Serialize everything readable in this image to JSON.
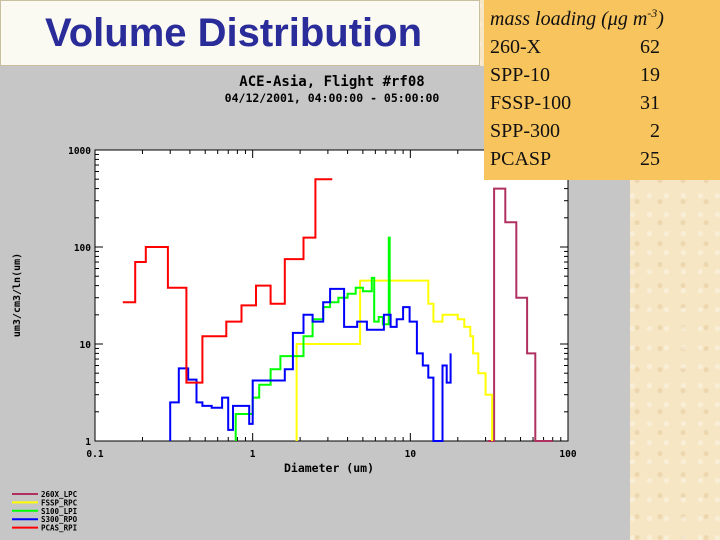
{
  "slide": {
    "title": "Volume Distribution"
  },
  "mass_loading": {
    "title_prefix": "mass loading (",
    "unit_mu": "μ",
    "unit_rest": "g m",
    "exponent": "-3",
    "title_suffix": ")",
    "rows": [
      {
        "name": "260-X",
        "value": "62"
      },
      {
        "name": "SPP-10",
        "value": "19"
      },
      {
        "name": "FSSP-100",
        "value": "31"
      },
      {
        "name": "SPP-300",
        "value": "2"
      },
      {
        "name": "PCASP",
        "value": "25"
      }
    ]
  },
  "chart_data": {
    "type": "line",
    "title": "ACE-Asia, Flight #rf08",
    "subtitle": "04/12/2001, 04:00:00 - 05:00:00",
    "xlabel": "Diameter (um)",
    "ylabel": "um3/cm3/ln(um)",
    "x_scale": "log",
    "y_scale": "log",
    "xlim": [
      0.1,
      100
    ],
    "ylim": [
      1,
      1000
    ],
    "x_ticks": [
      {
        "v": 0.1,
        "label": "0.1"
      },
      {
        "v": 1,
        "label": "1"
      },
      {
        "v": 10,
        "label": "10"
      },
      {
        "v": 100,
        "label": "100"
      }
    ],
    "y_ticks": [
      {
        "v": 1,
        "label": "1"
      },
      {
        "v": 10,
        "label": "10"
      },
      {
        "v": 100,
        "label": "100"
      },
      {
        "v": 1000,
        "label": "1000"
      }
    ],
    "grid": false,
    "legend_position": "bottom-left",
    "series": [
      {
        "name": "260X_LPC",
        "color": "#b03060",
        "points": [
          [
            31,
            1
          ],
          [
            34,
            1
          ],
          [
            34,
            400
          ],
          [
            40,
            400
          ],
          [
            40,
            180
          ],
          [
            47,
            180
          ],
          [
            47,
            30
          ],
          [
            55,
            30
          ],
          [
            55,
            8
          ],
          [
            62,
            8
          ],
          [
            62,
            1
          ],
          [
            80,
            1
          ]
        ]
      },
      {
        "name": "FSSP_RPC",
        "color": "#ffff00",
        "points": [
          [
            1.9,
            1
          ],
          [
            1.9,
            10
          ],
          [
            4.8,
            10
          ],
          [
            4.8,
            45
          ],
          [
            13,
            45
          ],
          [
            13,
            26
          ],
          [
            14,
            26
          ],
          [
            14,
            17
          ],
          [
            16,
            17
          ],
          [
            16,
            20
          ],
          [
            20,
            20
          ],
          [
            20,
            18
          ],
          [
            22,
            18
          ],
          [
            22,
            15
          ],
          [
            24,
            15
          ],
          [
            24,
            12
          ],
          [
            25,
            12
          ],
          [
            25,
            8
          ],
          [
            27,
            8
          ],
          [
            27,
            5
          ],
          [
            30,
            5
          ],
          [
            30,
            3
          ],
          [
            33,
            3
          ],
          [
            33,
            1
          ]
        ]
      },
      {
        "name": "S100_LPI",
        "color": "#00ff00",
        "points": [
          [
            0.78,
            1
          ],
          [
            0.78,
            1.9
          ],
          [
            1,
            1.9
          ],
          [
            1,
            2.8
          ],
          [
            1.1,
            2.8
          ],
          [
            1.1,
            3.8
          ],
          [
            1.3,
            3.8
          ],
          [
            1.3,
            5.5
          ],
          [
            1.5,
            5.5
          ],
          [
            1.5,
            7.5
          ],
          [
            2.1,
            7.5
          ],
          [
            2.1,
            12
          ],
          [
            2.4,
            12
          ],
          [
            2.4,
            18
          ],
          [
            2.8,
            18
          ],
          [
            2.8,
            24
          ],
          [
            3.1,
            24
          ],
          [
            3.1,
            27
          ],
          [
            3.5,
            27
          ],
          [
            3.5,
            30
          ],
          [
            4,
            30
          ],
          [
            4,
            33
          ],
          [
            4.5,
            33
          ],
          [
            4.5,
            38
          ],
          [
            5,
            38
          ],
          [
            5,
            35
          ],
          [
            5.7,
            35
          ],
          [
            5.7,
            48
          ],
          [
            5.9,
            48
          ],
          [
            5.9,
            17
          ],
          [
            6.3,
            17
          ],
          [
            6.3,
            19
          ],
          [
            6.7,
            19
          ],
          [
            6.7,
            16
          ],
          [
            7.3,
            16
          ],
          [
            7.3,
            125
          ],
          [
            7.4,
            125
          ],
          [
            7.4,
            18
          ],
          [
            7.6,
            18
          ]
        ]
      },
      {
        "name": "S300_RPO",
        "color": "#0000ff",
        "points": [
          [
            0.3,
            1
          ],
          [
            0.3,
            2.5
          ],
          [
            0.34,
            2.5
          ],
          [
            0.34,
            5.6
          ],
          [
            0.39,
            5.6
          ],
          [
            0.39,
            4.3
          ],
          [
            0.44,
            4.3
          ],
          [
            0.44,
            2.5
          ],
          [
            0.48,
            2.5
          ],
          [
            0.48,
            2.3
          ],
          [
            0.55,
            2.3
          ],
          [
            0.55,
            2.2
          ],
          [
            0.64,
            2.2
          ],
          [
            0.64,
            2.8
          ],
          [
            0.7,
            2.8
          ],
          [
            0.7,
            1.3
          ],
          [
            0.75,
            1.3
          ],
          [
            0.75,
            2.3
          ],
          [
            0.95,
            2.3
          ],
          [
            0.95,
            1.5
          ],
          [
            1,
            1.5
          ],
          [
            1,
            4.2
          ],
          [
            1.6,
            4.2
          ],
          [
            1.6,
            5.5
          ],
          [
            1.8,
            5.5
          ],
          [
            1.8,
            13
          ],
          [
            2.1,
            13
          ],
          [
            2.1,
            20
          ],
          [
            2.4,
            20
          ],
          [
            2.4,
            17
          ],
          [
            2.8,
            17
          ],
          [
            2.8,
            27
          ],
          [
            3.1,
            27
          ],
          [
            3.1,
            37
          ],
          [
            3.8,
            37
          ],
          [
            3.8,
            15
          ],
          [
            4.6,
            15
          ],
          [
            4.6,
            17
          ],
          [
            5.3,
            17
          ],
          [
            5.3,
            14
          ],
          [
            6.8,
            14
          ],
          [
            6.8,
            20
          ],
          [
            7.5,
            20
          ],
          [
            7.5,
            15
          ],
          [
            8.2,
            15
          ],
          [
            8.2,
            18
          ],
          [
            9,
            18
          ],
          [
            9,
            24
          ],
          [
            9.9,
            24
          ],
          [
            9.9,
            17
          ],
          [
            11,
            17
          ],
          [
            11,
            8
          ],
          [
            12,
            8
          ],
          [
            12,
            6
          ],
          [
            13,
            6
          ],
          [
            13,
            4.5
          ],
          [
            14,
            4.5
          ],
          [
            14,
            1
          ],
          [
            16,
            1
          ],
          [
            16,
            6
          ],
          [
            17,
            6
          ],
          [
            17,
            4
          ],
          [
            18,
            4
          ],
          [
            18,
            8
          ]
        ]
      },
      {
        "name": "PCAS_RPI",
        "color": "#ff0000",
        "points": [
          [
            0.15,
            27
          ],
          [
            0.18,
            27
          ],
          [
            0.18,
            70
          ],
          [
            0.21,
            70
          ],
          [
            0.21,
            100
          ],
          [
            0.29,
            100
          ],
          [
            0.29,
            38
          ],
          [
            0.38,
            38
          ],
          [
            0.38,
            4
          ],
          [
            0.48,
            4
          ],
          [
            0.48,
            12
          ],
          [
            0.68,
            12
          ],
          [
            0.68,
            17
          ],
          [
            0.85,
            17
          ],
          [
            0.85,
            25
          ],
          [
            1.05,
            25
          ],
          [
            1.05,
            40
          ],
          [
            1.3,
            40
          ],
          [
            1.3,
            26
          ],
          [
            1.6,
            26
          ],
          [
            1.6,
            75
          ],
          [
            2.1,
            75
          ],
          [
            2.1,
            125
          ],
          [
            2.5,
            125
          ],
          [
            2.5,
            500
          ],
          [
            3.2,
            500
          ]
        ]
      }
    ]
  }
}
